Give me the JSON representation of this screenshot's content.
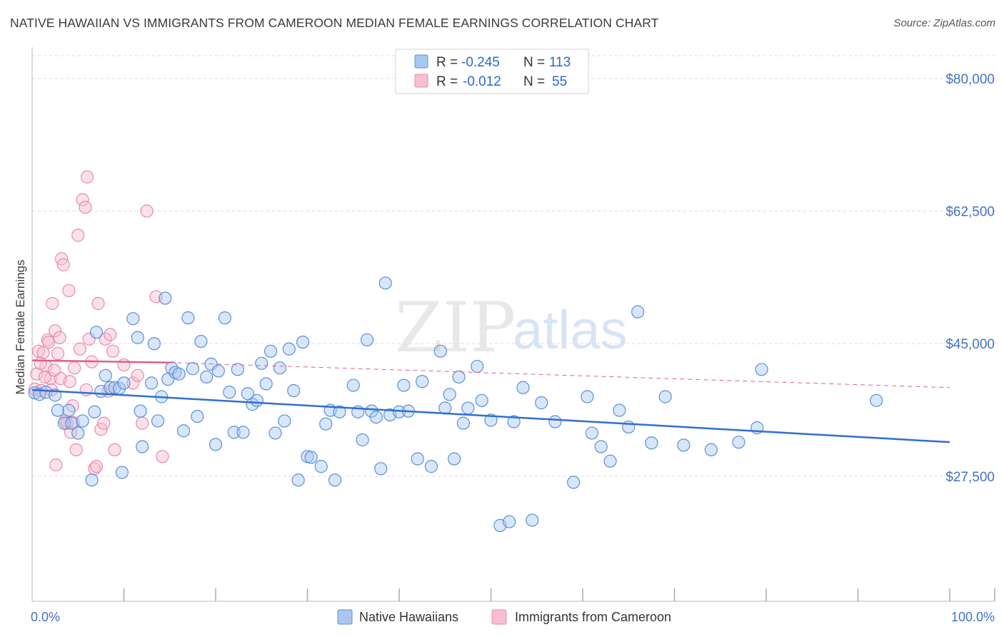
{
  "title": "NATIVE HAWAIIAN VS IMMIGRANTS FROM CAMEROON MEDIAN FEMALE EARNINGS CORRELATION CHART",
  "source": "Source: ZipAtlas.com",
  "watermark": {
    "zip": "ZIP",
    "atlas": "atlas"
  },
  "colors": {
    "blue_fill": "#a9c7f2",
    "blue_stroke": "#5b8fd9",
    "blue_line": "#2f6fd1",
    "pink_fill": "#f7bfd0",
    "pink_stroke": "#e88aa8",
    "pink_line": "#e0608a",
    "grid": "#dcdcdc",
    "tick_label": "#4472c4"
  },
  "legend": {
    "rows": [
      {
        "r_label": "R =",
        "r_value": "-0.245",
        "n_label": "N =",
        "n_value": "113"
      },
      {
        "r_label": "R =",
        "r_value": "-0.012",
        "n_label": "N =",
        "n_value": "55"
      }
    ]
  },
  "bottom_legend": [
    "Native Hawaiians",
    "Immigrants from Cameroon"
  ],
  "chart_data": {
    "type": "scatter",
    "title": "NATIVE HAWAIIAN VS IMMIGRANTS FROM CAMEROON MEDIAN FEMALE EARNINGS CORRELATION CHART",
    "xlabel": "",
    "ylabel": "Median Female Earnings",
    "xlim": [
      0,
      100
    ],
    "ylim": [
      11000,
      83000
    ],
    "yticks": [
      27500,
      45000,
      62500,
      80000
    ],
    "ytick_labels": [
      "$27,500",
      "$45,000",
      "$62,500",
      "$80,000"
    ],
    "xtick_labels": [
      "0.0%",
      "100.0%"
    ],
    "grid": true,
    "series": [
      {
        "name": "Native Hawaiians",
        "R": -0.245,
        "N": 113,
        "trend": {
          "x0": 0,
          "y0": 38900,
          "x1": 100,
          "y1": 32000
        },
        "points": [
          [
            0.3,
            38500
          ],
          [
            0.8,
            38300
          ],
          [
            1.5,
            38600
          ],
          [
            2.5,
            38200
          ],
          [
            2.8,
            36200
          ],
          [
            3.5,
            34500
          ],
          [
            4.0,
            36200
          ],
          [
            4.3,
            34500
          ],
          [
            5.0,
            33200
          ],
          [
            5.5,
            34800
          ],
          [
            6.5,
            27000
          ],
          [
            6.8,
            36000
          ],
          [
            7.0,
            46500
          ],
          [
            7.5,
            38700
          ],
          [
            8.0,
            40800
          ],
          [
            8.5,
            39200
          ],
          [
            9.0,
            39200
          ],
          [
            9.5,
            39100
          ],
          [
            9.8,
            28000
          ],
          [
            10.0,
            39800
          ],
          [
            11.0,
            48300
          ],
          [
            11.5,
            45800
          ],
          [
            11.8,
            36100
          ],
          [
            12.0,
            31400
          ],
          [
            13.0,
            39800
          ],
          [
            13.3,
            45000
          ],
          [
            13.7,
            34800
          ],
          [
            14.1,
            38000
          ],
          [
            14.5,
            51000
          ],
          [
            14.8,
            40300
          ],
          [
            15.2,
            41800
          ],
          [
            15.6,
            41200
          ],
          [
            16.0,
            41000
          ],
          [
            16.5,
            33500
          ],
          [
            17.0,
            48400
          ],
          [
            17.5,
            41700
          ],
          [
            18.0,
            35400
          ],
          [
            18.4,
            45300
          ],
          [
            19.0,
            40600
          ],
          [
            19.5,
            42300
          ],
          [
            20.0,
            31700
          ],
          [
            20.3,
            41400
          ],
          [
            21.0,
            48400
          ],
          [
            21.5,
            38600
          ],
          [
            22.0,
            33300
          ],
          [
            22.4,
            41600
          ],
          [
            23.0,
            33300
          ],
          [
            23.5,
            38400
          ],
          [
            24.0,
            37000
          ],
          [
            24.5,
            37500
          ],
          [
            25.0,
            42400
          ],
          [
            25.5,
            39700
          ],
          [
            26.0,
            44000
          ],
          [
            26.5,
            33200
          ],
          [
            27.0,
            41800
          ],
          [
            27.5,
            34800
          ],
          [
            28.0,
            44300
          ],
          [
            28.5,
            38800
          ],
          [
            29.0,
            27000
          ],
          [
            29.5,
            45200
          ],
          [
            30.0,
            30100
          ],
          [
            30.4,
            30000
          ],
          [
            31.5,
            28800
          ],
          [
            32.0,
            34400
          ],
          [
            32.5,
            36200
          ],
          [
            33.0,
            27000
          ],
          [
            33.5,
            36000
          ],
          [
            35.0,
            39500
          ],
          [
            35.5,
            36000
          ],
          [
            36.0,
            32300
          ],
          [
            36.5,
            45500
          ],
          [
            37.0,
            36100
          ],
          [
            37.5,
            35300
          ],
          [
            38.0,
            28500
          ],
          [
            38.5,
            53000
          ],
          [
            39.0,
            35600
          ],
          [
            40.0,
            36000
          ],
          [
            40.5,
            39500
          ],
          [
            41.0,
            36100
          ],
          [
            42.0,
            29800
          ],
          [
            42.5,
            40000
          ],
          [
            43.5,
            28800
          ],
          [
            44.5,
            44000
          ],
          [
            45.0,
            36500
          ],
          [
            45.5,
            38300
          ],
          [
            46.0,
            29800
          ],
          [
            46.5,
            40600
          ],
          [
            47.0,
            34500
          ],
          [
            47.5,
            36500
          ],
          [
            48.5,
            42000
          ],
          [
            49.0,
            37500
          ],
          [
            50.0,
            34900
          ],
          [
            51.0,
            21000
          ],
          [
            52.0,
            21500
          ],
          [
            52.5,
            34700
          ],
          [
            53.5,
            39200
          ],
          [
            54.5,
            21700
          ],
          [
            55.5,
            37200
          ],
          [
            57.0,
            34700
          ],
          [
            59.0,
            26700
          ],
          [
            60.5,
            38000
          ],
          [
            61.0,
            33200
          ],
          [
            62.0,
            31400
          ],
          [
            63.0,
            29500
          ],
          [
            64.0,
            36200
          ],
          [
            65.0,
            34000
          ],
          [
            66.0,
            49200
          ],
          [
            67.5,
            31900
          ],
          [
            69.0,
            38000
          ],
          [
            71.0,
            31600
          ],
          [
            74.0,
            31000
          ],
          [
            77.0,
            32000
          ],
          [
            79.0,
            33900
          ],
          [
            79.5,
            41600
          ],
          [
            92.0,
            37500
          ]
        ]
      },
      {
        "name": "Immigrants from Cameroon",
        "R": -0.012,
        "N": 55,
        "trend": {
          "x0": 0,
          "y0": 42800,
          "x1": 15,
          "y1": 42500,
          "dashed_x1": 100,
          "dashed_y1": 39200
        },
        "points": [
          [
            0.3,
            39000
          ],
          [
            0.5,
            41000
          ],
          [
            0.7,
            44000
          ],
          [
            1.0,
            38800
          ],
          [
            1.2,
            43800
          ],
          [
            1.5,
            42000
          ],
          [
            1.7,
            45500
          ],
          [
            2.0,
            40400
          ],
          [
            2.2,
            50300
          ],
          [
            2.5,
            46700
          ],
          [
            2.6,
            29000
          ],
          [
            2.8,
            43700
          ],
          [
            3.0,
            45800
          ],
          [
            3.2,
            56200
          ],
          [
            3.4,
            55400
          ],
          [
            3.6,
            34800
          ],
          [
            3.8,
            34500
          ],
          [
            4.0,
            52000
          ],
          [
            4.2,
            33300
          ],
          [
            4.4,
            36800
          ],
          [
            4.5,
            34600
          ],
          [
            4.6,
            41800
          ],
          [
            4.8,
            31000
          ],
          [
            5.0,
            59300
          ],
          [
            5.2,
            44300
          ],
          [
            5.5,
            64000
          ],
          [
            5.8,
            63000
          ],
          [
            6.0,
            67000
          ],
          [
            6.2,
            45600
          ],
          [
            6.5,
            42600
          ],
          [
            6.8,
            28500
          ],
          [
            7.0,
            28800
          ],
          [
            7.2,
            50300
          ],
          [
            7.5,
            33700
          ],
          [
            7.8,
            34500
          ],
          [
            8.0,
            45600
          ],
          [
            8.3,
            38700
          ],
          [
            8.5,
            46200
          ],
          [
            8.8,
            44000
          ],
          [
            9.0,
            31000
          ],
          [
            10.0,
            42200
          ],
          [
            11.0,
            39800
          ],
          [
            11.5,
            40800
          ],
          [
            12.0,
            34500
          ],
          [
            12.5,
            62500
          ],
          [
            13.5,
            51200
          ],
          [
            14.2,
            30100
          ],
          [
            1.4,
            40600
          ],
          [
            2.1,
            38900
          ],
          [
            3.1,
            40400
          ],
          [
            0.9,
            42400
          ],
          [
            1.8,
            45200
          ],
          [
            2.4,
            41500
          ],
          [
            4.1,
            40000
          ],
          [
            5.9,
            38900
          ]
        ]
      }
    ]
  }
}
